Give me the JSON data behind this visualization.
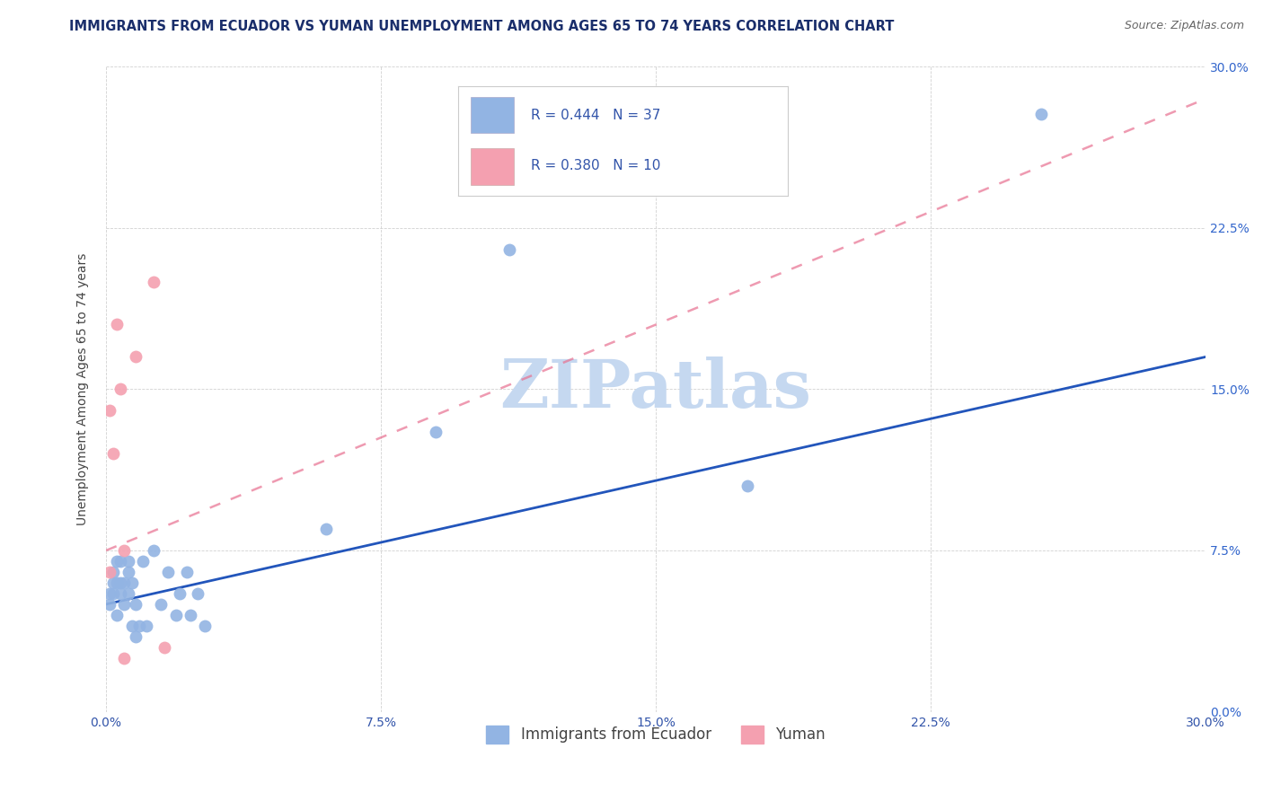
{
  "title": "IMMIGRANTS FROM ECUADOR VS YUMAN UNEMPLOYMENT AMONG AGES 65 TO 74 YEARS CORRELATION CHART",
  "source": "Source: ZipAtlas.com",
  "xlabel": "",
  "ylabel": "Unemployment Among Ages 65 to 74 years",
  "xlim": [
    0,
    0.3
  ],
  "ylim": [
    0,
    0.3
  ],
  "xticks": [
    0.0,
    0.075,
    0.15,
    0.225,
    0.3
  ],
  "yticks": [
    0.0,
    0.075,
    0.15,
    0.225,
    0.3
  ],
  "xtick_labels": [
    "0.0%",
    "7.5%",
    "15.0%",
    "22.5%",
    "30.0%"
  ],
  "ytick_labels": [
    "0.0%",
    "7.5%",
    "15.0%",
    "22.5%",
    "30.0%"
  ],
  "ecuador_R": 0.444,
  "ecuador_N": 37,
  "yuman_R": 0.38,
  "yuman_N": 10,
  "ecuador_color": "#92b4e3",
  "yuman_color": "#f4a0b0",
  "ecuador_line_color": "#2255bb",
  "yuman_line_color": "#e87090",
  "ecuador_line_style": "solid",
  "yuman_line_style": "dashed",
  "watermark": "ZIPatlas",
  "watermark_color": "#c5d8f0",
  "legend_label_ecuador": "Immigrants from Ecuador",
  "legend_label_yuman": "Yuman",
  "ecuador_points_x": [
    0.001,
    0.001,
    0.002,
    0.002,
    0.002,
    0.003,
    0.003,
    0.003,
    0.004,
    0.004,
    0.004,
    0.005,
    0.005,
    0.006,
    0.006,
    0.006,
    0.007,
    0.007,
    0.008,
    0.008,
    0.009,
    0.01,
    0.011,
    0.013,
    0.015,
    0.017,
    0.019,
    0.02,
    0.022,
    0.023,
    0.025,
    0.027,
    0.06,
    0.09,
    0.11,
    0.175,
    0.255
  ],
  "ecuador_points_y": [
    0.05,
    0.055,
    0.055,
    0.06,
    0.065,
    0.045,
    0.06,
    0.07,
    0.06,
    0.055,
    0.07,
    0.05,
    0.06,
    0.055,
    0.065,
    0.07,
    0.06,
    0.04,
    0.05,
    0.035,
    0.04,
    0.07,
    0.04,
    0.075,
    0.05,
    0.065,
    0.045,
    0.055,
    0.065,
    0.045,
    0.055,
    0.04,
    0.085,
    0.13,
    0.215,
    0.105,
    0.278
  ],
  "yuman_points_x": [
    0.001,
    0.001,
    0.002,
    0.003,
    0.004,
    0.005,
    0.005,
    0.008,
    0.013,
    0.016
  ],
  "yuman_points_y": [
    0.065,
    0.14,
    0.12,
    0.18,
    0.15,
    0.075,
    0.025,
    0.165,
    0.2,
    0.03
  ],
  "ecuador_line_x0": 0.0,
  "ecuador_line_y0": 0.05,
  "ecuador_line_x1": 0.3,
  "ecuador_line_y1": 0.165,
  "yuman_line_x0": 0.0,
  "yuman_line_y0": 0.075,
  "yuman_line_x1": 0.3,
  "yuman_line_y1": 0.285,
  "title_color": "#1a2e6b",
  "axis_label_color": "#444444",
  "tick_color": "#3355aa",
  "right_tick_color": "#3366cc",
  "title_fontsize": 10.5,
  "label_fontsize": 10,
  "tick_fontsize": 10,
  "legend_fontsize": 11,
  "legend_text_color": "#3355aa"
}
